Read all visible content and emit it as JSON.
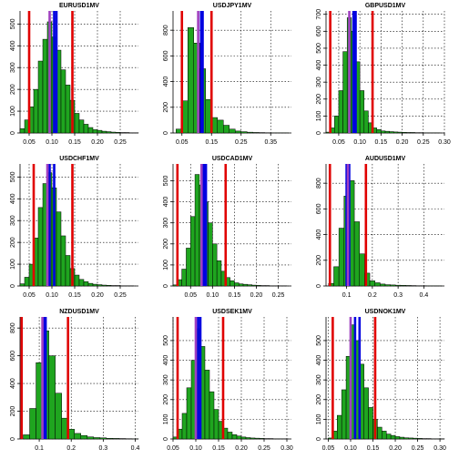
{
  "chart_data": [
    {
      "type": "histogram",
      "title": "EURUSD1MV",
      "color": "#1fa51f",
      "bins": [
        0.03,
        0.04,
        0.05,
        0.06,
        0.07,
        0.08,
        0.09,
        0.1,
        0.11,
        0.12,
        0.13,
        0.14,
        0.15,
        0.16,
        0.17,
        0.18,
        0.19,
        0.2,
        0.21,
        0.22,
        0.23,
        0.24,
        0.25,
        0.26,
        0.27,
        0.28,
        0.29
      ],
      "values": [
        20,
        60,
        120,
        200,
        330,
        430,
        510,
        440,
        380,
        290,
        220,
        150,
        90,
        60,
        40,
        25,
        15,
        12,
        8,
        6,
        4,
        3,
        2,
        2,
        1,
        1
      ],
      "xlim": [
        0.03,
        0.29
      ],
      "xticks": [
        0.05,
        {
          "value": 0.1,
          "label": "0.10"
        },
        0.15,
        {
          "value": 0.2,
          "label": "0.20"
        },
        0.25
      ],
      "ylim": [
        0,
        560
      ],
      "yticks": [
        0,
        100,
        200,
        300,
        400,
        500
      ],
      "grid": true,
      "reference_lines": [
        {
          "value": 0.05,
          "color": "#e00000"
        },
        {
          "value": 0.145,
          "color": "#e00000"
        },
        {
          "value": 0.105,
          "color": "#0000e0"
        },
        {
          "value": 0.11,
          "color": "#0000e0"
        },
        {
          "value": 0.095,
          "color": "#a040c0"
        }
      ]
    },
    {
      "type": "histogram",
      "title": "USDJPY1MV",
      "color": "#1fa51f",
      "bins": [
        0.03,
        0.05,
        0.07,
        0.09,
        0.11,
        0.13,
        0.15,
        0.17,
        0.19,
        0.21,
        0.23,
        0.25,
        0.27,
        0.29,
        0.31,
        0.33,
        0.35,
        0.37,
        0.39,
        0.41
      ],
      "values": [
        30,
        250,
        820,
        700,
        500,
        260,
        120,
        100,
        60,
        30,
        15,
        10,
        6,
        4,
        3,
        2,
        1,
        1,
        1
      ],
      "xlim": [
        0.02,
        0.42
      ],
      "xticks": [
        0.05,
        0.15,
        0.25,
        0.35
      ],
      "ylim": [
        0,
        950
      ],
      "yticks": [
        0,
        200,
        400,
        600,
        800
      ],
      "grid": true,
      "reference_lines": [
        {
          "value": 0.05,
          "color": "#e00000"
        },
        {
          "value": 0.15,
          "color": "#e00000"
        },
        {
          "value": 0.115,
          "color": "#0000e0"
        },
        {
          "value": 0.12,
          "color": "#0000e0"
        },
        {
          "value": 0.105,
          "color": "#a040c0"
        }
      ]
    },
    {
      "type": "histogram",
      "title": "GBPUSD1MV",
      "color": "#1fa51f",
      "bins": [
        0.02,
        0.03,
        0.04,
        0.05,
        0.06,
        0.07,
        0.08,
        0.09,
        0.1,
        0.11,
        0.12,
        0.13,
        0.14,
        0.15,
        0.16,
        0.17,
        0.18,
        0.19,
        0.2,
        0.21,
        0.22,
        0.23,
        0.24,
        0.25,
        0.26,
        0.27,
        0.28,
        0.29
      ],
      "values": [
        5,
        30,
        100,
        250,
        480,
        680,
        600,
        420,
        250,
        130,
        60,
        30,
        20,
        12,
        10,
        8,
        6,
        5,
        4,
        3,
        3,
        2,
        2,
        1,
        1,
        1,
        1
      ],
      "xlim": [
        0.02,
        0.3
      ],
      "xticks": [
        0.05,
        {
          "value": 0.1,
          "label": "0.10"
        },
        0.15,
        {
          "value": 0.2,
          "label": "0.20"
        },
        0.25,
        {
          "value": 0.3,
          "label": "0.30"
        }
      ],
      "ylim": [
        0,
        720
      ],
      "yticks": [
        0,
        100,
        200,
        300,
        400,
        500,
        600,
        700
      ],
      "grid": true,
      "reference_lines": [
        {
          "value": 0.03,
          "color": "#e00000"
        },
        {
          "value": 0.13,
          "color": "#e00000"
        },
        {
          "value": 0.085,
          "color": "#0000e0"
        },
        {
          "value": 0.09,
          "color": "#0000e0"
        },
        {
          "value": 0.075,
          "color": "#a040c0"
        }
      ]
    },
    {
      "type": "histogram",
      "title": "USDCHF1MV",
      "color": "#1fa51f",
      "bins": [
        0.03,
        0.04,
        0.05,
        0.06,
        0.07,
        0.08,
        0.09,
        0.1,
        0.11,
        0.12,
        0.13,
        0.14,
        0.15,
        0.16,
        0.17,
        0.18,
        0.19,
        0.2,
        0.21,
        0.22,
        0.23,
        0.24,
        0.25,
        0.26,
        0.27,
        0.28
      ],
      "values": [
        10,
        40,
        100,
        220,
        360,
        470,
        520,
        450,
        340,
        230,
        140,
        80,
        50,
        30,
        20,
        12,
        8,
        6,
        4,
        3,
        2,
        2,
        1,
        1,
        1
      ],
      "xlim": [
        0.03,
        0.29
      ],
      "xticks": [
        0.05,
        {
          "value": 0.1,
          "label": "0.10"
        },
        0.15,
        {
          "value": 0.2,
          "label": "0.20"
        },
        0.25
      ],
      "ylim": [
        0,
        560
      ],
      "yticks": [
        0,
        100,
        200,
        300,
        400,
        500
      ],
      "grid": true,
      "reference_lines": [
        {
          "value": 0.06,
          "color": "#e00000"
        },
        {
          "value": 0.145,
          "color": "#e00000"
        },
        {
          "value": 0.095,
          "color": "#0000e0"
        },
        {
          "value": 0.105,
          "color": "#0000e0"
        },
        {
          "value": 0.09,
          "color": "#a040c0"
        }
      ]
    },
    {
      "type": "histogram",
      "title": "USDCAD1MV",
      "color": "#1fa51f",
      "bins": [
        0.01,
        0.02,
        0.03,
        0.04,
        0.05,
        0.06,
        0.07,
        0.08,
        0.09,
        0.1,
        0.11,
        0.12,
        0.13,
        0.14,
        0.15,
        0.16,
        0.17,
        0.18,
        0.19,
        0.2,
        0.21,
        0.22,
        0.23,
        0.24,
        0.25,
        0.26,
        0.27
      ],
      "values": [
        5,
        30,
        80,
        180,
        330,
        530,
        480,
        400,
        300,
        200,
        120,
        70,
        40,
        25,
        15,
        10,
        8,
        6,
        4,
        3,
        2,
        2,
        1,
        1,
        1,
        1
      ],
      "xlim": [
        0.01,
        0.28
      ],
      "xticks": [
        0.05,
        {
          "value": 0.1,
          "label": "0.10"
        },
        0.15,
        {
          "value": 0.2,
          "label": "0.20"
        },
        0.25
      ],
      "ylim": [
        0,
        580
      ],
      "yticks": [
        0,
        100,
        200,
        300,
        400,
        500
      ],
      "grid": true,
      "reference_lines": [
        {
          "value": 0.02,
          "color": "#e00000"
        },
        {
          "value": 0.13,
          "color": "#e00000"
        },
        {
          "value": 0.08,
          "color": "#0000e0"
        },
        {
          "value": 0.085,
          "color": "#0000e0"
        },
        {
          "value": 0.075,
          "color": "#a040c0"
        }
      ]
    },
    {
      "type": "histogram",
      "title": "AUDUSD1MV",
      "color": "#1fa51f",
      "bins": [
        0.03,
        0.05,
        0.07,
        0.09,
        0.11,
        0.13,
        0.15,
        0.17,
        0.19,
        0.21,
        0.23,
        0.25,
        0.27,
        0.29,
        0.31,
        0.33,
        0.35,
        0.37,
        0.39,
        0.41,
        0.43,
        0.45,
        0.47
      ],
      "values": [
        20,
        150,
        450,
        700,
        820,
        500,
        250,
        100,
        40,
        25,
        15,
        10,
        8,
        6,
        5,
        4,
        3,
        2,
        2,
        1,
        1,
        1
      ],
      "xlim": [
        0.02,
        0.48
      ],
      "xticks": [
        0.1,
        0.2,
        0.3,
        0.4
      ],
      "ylim": [
        0,
        950
      ],
      "yticks": [
        0,
        200,
        400,
        600,
        800
      ],
      "grid": true,
      "reference_lines": [
        {
          "value": 0.035,
          "color": "#e00000"
        },
        {
          "value": 0.175,
          "color": "#e00000"
        },
        {
          "value": 0.1,
          "color": "#0000e0"
        },
        {
          "value": 0.11,
          "color": "#0000e0"
        },
        {
          "value": 0.105,
          "color": "#a040c0"
        }
      ]
    },
    {
      "type": "histogram",
      "title": "NZDUSD1MV",
      "color": "#1fa51f",
      "bins": [
        0.05,
        0.07,
        0.09,
        0.11,
        0.13,
        0.15,
        0.17,
        0.19,
        0.21,
        0.23,
        0.25,
        0.27,
        0.29,
        0.31,
        0.33,
        0.35,
        0.37,
        0.39,
        0.41
      ],
      "values": [
        30,
        220,
        550,
        780,
        600,
        330,
        150,
        70,
        40,
        25,
        15,
        10,
        8,
        5,
        4,
        3,
        2,
        1
      ],
      "xlim": [
        0.04,
        0.41
      ],
      "xticks": [
        0.1,
        0.2,
        0.3,
        0.4
      ],
      "ylim": [
        0,
        880
      ],
      "yticks": [
        0,
        200,
        400,
        600,
        800
      ],
      "grid": true,
      "reference_lines": [
        {
          "value": 0.045,
          "color": "#e00000"
        },
        {
          "value": 0.19,
          "color": "#e00000"
        },
        {
          "value": 0.115,
          "color": "#0000e0"
        },
        {
          "value": 0.12,
          "color": "#0000e0"
        },
        {
          "value": 0.11,
          "color": "#a040c0"
        }
      ]
    },
    {
      "type": "histogram",
      "title": "USDSEK1MV",
      "color": "#1fa51f",
      "bins": [
        0.05,
        0.06,
        0.07,
        0.08,
        0.09,
        0.1,
        0.11,
        0.12,
        0.13,
        0.14,
        0.15,
        0.16,
        0.17,
        0.18,
        0.19,
        0.2,
        0.21,
        0.22,
        0.23,
        0.24,
        0.25,
        0.26,
        0.27,
        0.28,
        0.29,
        0.3,
        0.31
      ],
      "values": [
        10,
        50,
        130,
        260,
        400,
        560,
        470,
        350,
        240,
        150,
        90,
        55,
        35,
        22,
        15,
        10,
        7,
        5,
        4,
        3,
        2,
        2,
        1,
        1,
        1,
        0
      ],
      "xlim": [
        0.05,
        0.31
      ],
      "xticks": [
        0.05,
        {
          "value": 0.1,
          "label": "0.10"
        },
        0.15,
        {
          "value": 0.2,
          "label": "0.20"
        },
        0.25,
        {
          "value": 0.3,
          "label": "0.30"
        }
      ],
      "ylim": [
        0,
        620
      ],
      "yticks": [
        0,
        100,
        200,
        300,
        400,
        500
      ],
      "grid": true,
      "reference_lines": [
        {
          "value": 0.06,
          "color": "#e00000"
        },
        {
          "value": 0.16,
          "color": "#e00000"
        },
        {
          "value": 0.105,
          "color": "#0000e0"
        },
        {
          "value": 0.11,
          "color": "#0000e0"
        },
        {
          "value": 0.1,
          "color": "#a040c0"
        }
      ]
    },
    {
      "type": "histogram",
      "title": "USDNOK1MV",
      "color": "#1fa51f",
      "bins": [
        0.05,
        0.06,
        0.07,
        0.08,
        0.09,
        0.1,
        0.11,
        0.12,
        0.13,
        0.14,
        0.15,
        0.16,
        0.17,
        0.18,
        0.19,
        0.2,
        0.21,
        0.22,
        0.23,
        0.24,
        0.25,
        0.26,
        0.27,
        0.28,
        0.29,
        0.3,
        0.31
      ],
      "values": [
        5,
        40,
        120,
        250,
        420,
        580,
        500,
        380,
        260,
        160,
        100,
        60,
        40,
        25,
        18,
        12,
        9,
        6,
        5,
        4,
        3,
        2,
        2,
        1,
        1,
        1
      ],
      "xlim": [
        0.045,
        0.31
      ],
      "xticks": [
        0.05,
        {
          "value": 0.1,
          "label": "0.10"
        },
        0.15,
        {
          "value": 0.2,
          "label": "0.20"
        },
        0.25,
        {
          "value": 0.3,
          "label": "0.30"
        }
      ],
      "ylim": [
        0,
        620
      ],
      "yticks": [
        0,
        100,
        200,
        300,
        400,
        500
      ],
      "grid": true,
      "reference_lines": [
        {
          "value": 0.06,
          "color": "#e00000"
        },
        {
          "value": 0.155,
          "color": "#e00000"
        },
        {
          "value": 0.11,
          "color": "#0000e0"
        },
        {
          "value": 0.12,
          "color": "#0000e0"
        },
        {
          "value": 0.1,
          "color": "#a040c0"
        }
      ]
    }
  ]
}
